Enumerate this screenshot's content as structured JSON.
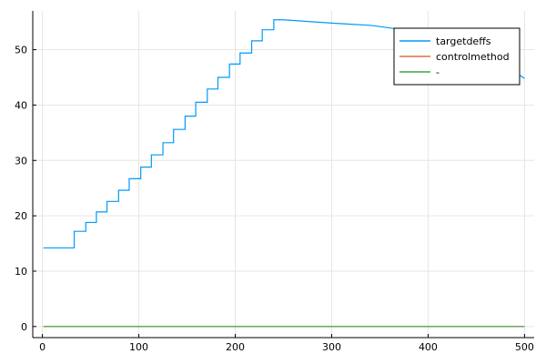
{
  "chart_data": {
    "type": "line",
    "title": "",
    "xlabel": "",
    "ylabel": "",
    "xlim": [
      -10,
      510
    ],
    "ylim": [
      -2,
      57
    ],
    "grid": true,
    "legend_position": "top-right",
    "x_ticks": [
      0,
      100,
      200,
      300,
      400,
      500
    ],
    "y_ticks": [
      0,
      10,
      20,
      30,
      40,
      50
    ],
    "x_tick_labels": [
      "0",
      "100",
      "200",
      "300",
      "400",
      "500"
    ],
    "y_tick_labels": [
      "0",
      "10",
      "20",
      "30",
      "40",
      "50"
    ],
    "series": [
      {
        "name": "targetdeffs",
        "color": "#009AFA",
        "points": [
          [
            1,
            14.2
          ],
          [
            33,
            14.2
          ],
          [
            33,
            17.2
          ],
          [
            45,
            17.2
          ],
          [
            45,
            18.8
          ],
          [
            56,
            18.8
          ],
          [
            56,
            20.7
          ],
          [
            67,
            20.7
          ],
          [
            67,
            22.6
          ],
          [
            79,
            22.6
          ],
          [
            79,
            24.6
          ],
          [
            90,
            24.6
          ],
          [
            90,
            26.7
          ],
          [
            102,
            26.7
          ],
          [
            102,
            28.8
          ],
          [
            113,
            28.8
          ],
          [
            113,
            31.0
          ],
          [
            125,
            31.0
          ],
          [
            125,
            33.2
          ],
          [
            136,
            33.2
          ],
          [
            136,
            35.6
          ],
          [
            148,
            35.6
          ],
          [
            148,
            38.0
          ],
          [
            159,
            38.0
          ],
          [
            159,
            40.5
          ],
          [
            171,
            40.5
          ],
          [
            171,
            42.9
          ],
          [
            182,
            42.9
          ],
          [
            182,
            45.0
          ],
          [
            194,
            45.0
          ],
          [
            194,
            47.4
          ],
          [
            205,
            47.4
          ],
          [
            205,
            49.4
          ],
          [
            217,
            49.4
          ],
          [
            217,
            51.6
          ],
          [
            228,
            51.6
          ],
          [
            228,
            53.6
          ],
          [
            240,
            53.6
          ],
          [
            240,
            55.4
          ],
          [
            250,
            55.4
          ],
          [
            300,
            54.8
          ],
          [
            340,
            54.4
          ],
          [
            370,
            53.7
          ],
          [
            400,
            52.5
          ],
          [
            430,
            51.0
          ],
          [
            460,
            48.6
          ],
          [
            490,
            46.0
          ],
          [
            500,
            44.8
          ]
        ]
      },
      {
        "name": "controlmethod",
        "color": "#E26F46",
        "points": [
          [
            1,
            0
          ],
          [
            500,
            0
          ]
        ]
      },
      {
        "name": "-",
        "color": "#3EA44E",
        "points": [
          [
            1,
            0
          ],
          [
            500,
            0
          ]
        ]
      }
    ]
  }
}
